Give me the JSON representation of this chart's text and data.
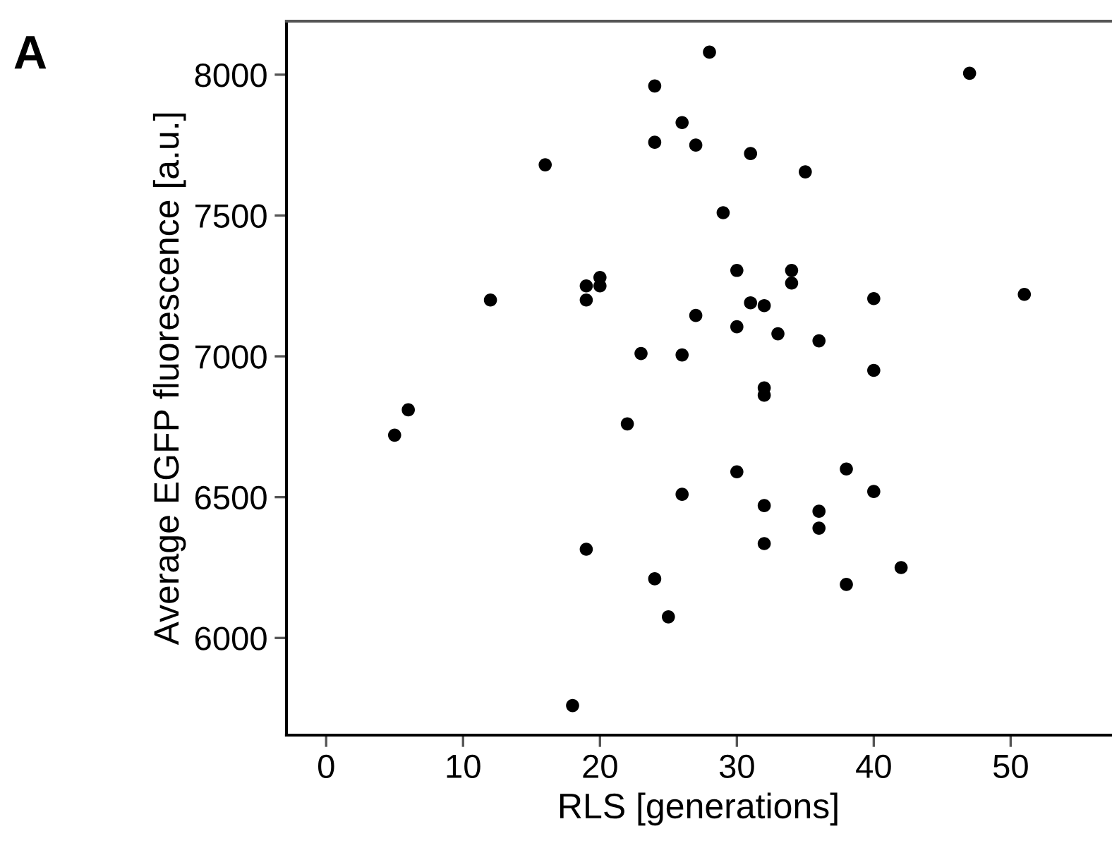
{
  "chart_data": {
    "type": "scatter",
    "xlabel": "RLS [generations]",
    "ylabel": "Average EGFP fluorescence [a.u.]",
    "annotations": [
      "A"
    ],
    "color": "#000000",
    "marker": "circle",
    "grid": false,
    "x": [
      5,
      6,
      12,
      16,
      18,
      19,
      19,
      19,
      20,
      20,
      22,
      23,
      24,
      24,
      24,
      25,
      26,
      26,
      26,
      27,
      27,
      28,
      29,
      30,
      30,
      30,
      31,
      31,
      32,
      32,
      32,
      32,
      32,
      33,
      34,
      34,
      35,
      36,
      36,
      36,
      38,
      38,
      40,
      40,
      40,
      42,
      47,
      51
    ],
    "values": [
      6720,
      6810,
      7200,
      7680,
      5760,
      7250,
      7200,
      6315,
      7280,
      7250,
      6760,
      7010,
      7960,
      7760,
      6210,
      6075,
      7830,
      7005,
      6510,
      7750,
      7145,
      8080,
      7510,
      7305,
      7105,
      6590,
      7720,
      7190,
      7180,
      6888,
      6862,
      6470,
      6335,
      7080,
      7305,
      7260,
      7655,
      7055,
      6450,
      6390,
      6600,
      6190,
      7205,
      6950,
      6520,
      6250,
      8005,
      7220
    ],
    "xlim": [
      -2.9,
      57.3
    ],
    "ylim": [
      5655,
      8190
    ],
    "xticks": [
      0,
      10,
      20,
      30,
      40,
      50
    ],
    "yticks": [
      6000,
      6500,
      7000,
      7500,
      8000
    ]
  }
}
